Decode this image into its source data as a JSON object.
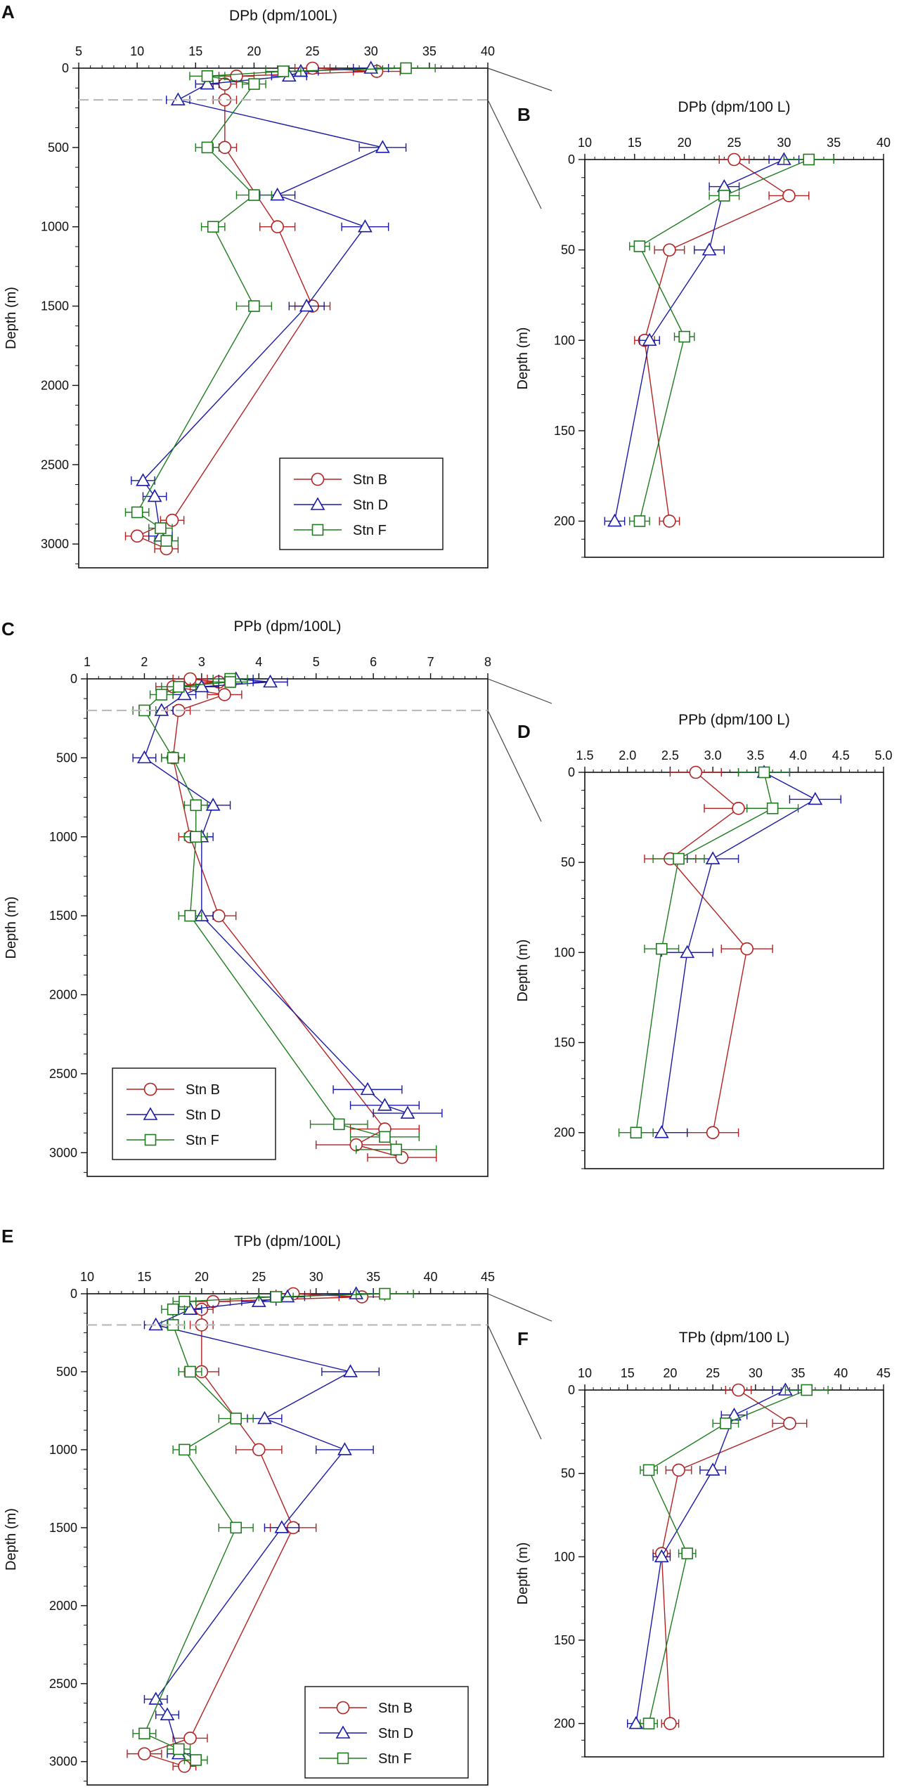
{
  "figure": {
    "panel_letters": [
      "A",
      "B",
      "C",
      "D",
      "E",
      "F"
    ]
  },
  "colors": {
    "B": "#b22222",
    "D": "#1a1aa6",
    "F": "#1e7b1e",
    "axis": "#111111",
    "divider": "#bbbbbb"
  },
  "chart_data": [
    {
      "id": "A",
      "type": "line",
      "title": "DPb (dpm/100L)",
      "xlabel": "",
      "ylabel": "Depth (m)",
      "xlim": [
        5,
        40
      ],
      "xticks": [
        5,
        10,
        15,
        20,
        25,
        30,
        35,
        40
      ],
      "ylim": [
        0,
        3150
      ],
      "yticks": [
        0,
        500,
        1000,
        1500,
        2000,
        2500,
        3000
      ],
      "legend_position": "bottom-right",
      "series": [
        {
          "name": "Stn B",
          "marker": "circle",
          "depth": [
            0,
            20,
            50,
            100,
            200,
            500,
            1000,
            1500,
            2850,
            2950,
            3030
          ],
          "values": [
            25,
            30.5,
            18.5,
            17.5,
            17.5,
            17.5,
            22,
            25,
            13,
            10,
            12.5
          ],
          "errors": [
            1.5,
            2,
            1.5,
            1,
            1,
            1,
            1.5,
            1.5,
            1,
            1,
            1
          ]
        },
        {
          "name": "Stn D",
          "marker": "triangle",
          "depth": [
            0,
            20,
            50,
            100,
            200,
            500,
            800,
            1000,
            1500,
            2600,
            2700,
            2950
          ],
          "values": [
            30,
            24,
            23,
            16,
            13.5,
            31,
            22,
            29.5,
            24.5,
            10.5,
            11.5,
            12
          ],
          "errors": [
            1.5,
            1.5,
            1.5,
            1,
            1,
            2,
            1.5,
            2,
            1.5,
            1,
            1,
            1
          ]
        },
        {
          "name": "Stn F",
          "marker": "square",
          "depth": [
            0,
            20,
            50,
            100,
            500,
            800,
            1000,
            1500,
            2800,
            2900,
            2980
          ],
          "values": [
            33,
            22.5,
            16,
            20,
            16,
            20,
            16.5,
            20,
            10,
            12,
            12.5
          ],
          "errors": [
            2.5,
            1.5,
            1.5,
            1,
            1,
            1.5,
            1,
            1.5,
            1,
            1,
            1
          ]
        }
      ]
    },
    {
      "id": "B",
      "type": "line",
      "title": "DPb (dpm/100 L)",
      "xlabel": "",
      "ylabel": "Depth (m)",
      "xlim": [
        10,
        40
      ],
      "xticks": [
        10,
        15,
        20,
        25,
        30,
        35,
        40
      ],
      "ylim": [
        0,
        220
      ],
      "yticks": [
        0,
        50,
        100,
        150,
        200
      ],
      "series": [
        {
          "name": "Stn B",
          "marker": "circle",
          "depth": [
            0,
            20,
            50,
            100,
            200
          ],
          "values": [
            25,
            30.5,
            18.5,
            16,
            18.5
          ],
          "errors": [
            1.5,
            2,
            1.5,
            1,
            1
          ]
        },
        {
          "name": "Stn D",
          "marker": "triangle",
          "depth": [
            0,
            15,
            50,
            100,
            200
          ],
          "values": [
            30,
            24,
            22.5,
            16.5,
            13
          ],
          "errors": [
            1.5,
            1.5,
            1.5,
            1,
            1
          ]
        },
        {
          "name": "Stn F",
          "marker": "square",
          "depth": [
            0,
            20,
            48,
            98,
            200
          ],
          "values": [
            32.5,
            24,
            15.5,
            20,
            15.5
          ],
          "errors": [
            2.5,
            1.5,
            1,
            1,
            1
          ]
        }
      ]
    },
    {
      "id": "C",
      "type": "line",
      "title": "PPb (dpm/100L)",
      "xlabel": "",
      "ylabel": "Depth (m)",
      "xlim": [
        1,
        8
      ],
      "xticks": [
        1,
        2,
        3,
        4,
        5,
        6,
        7,
        8
      ],
      "ylim": [
        0,
        3150
      ],
      "yticks": [
        0,
        500,
        1000,
        1500,
        2000,
        2500,
        3000
      ],
      "legend_position": "bottom-left",
      "series": [
        {
          "name": "Stn B",
          "marker": "circle",
          "depth": [
            0,
            20,
            50,
            100,
            200,
            500,
            1000,
            1500,
            2850,
            2950,
            3030
          ],
          "values": [
            2.8,
            3.3,
            2.5,
            3.4,
            2.6,
            2.5,
            2.8,
            3.3,
            6.2,
            5.7,
            6.5
          ],
          "errors": [
            0.3,
            0.3,
            0.3,
            0.3,
            0.2,
            0.2,
            0.2,
            0.3,
            0.6,
            0.7,
            0.6
          ]
        },
        {
          "name": "Stn D",
          "marker": "triangle",
          "depth": [
            0,
            20,
            50,
            100,
            200,
            500,
            800,
            1000,
            1500,
            2600,
            2700,
            2750
          ],
          "values": [
            3.6,
            4.2,
            3.0,
            2.7,
            2.3,
            2.0,
            3.2,
            3.0,
            3.0,
            5.9,
            6.2,
            6.6
          ],
          "errors": [
            0.3,
            0.3,
            0.3,
            0.2,
            0.2,
            0.2,
            0.3,
            0.2,
            0.2,
            0.6,
            0.6,
            0.6
          ]
        },
        {
          "name": "Stn F",
          "marker": "square",
          "depth": [
            0,
            20,
            50,
            100,
            200,
            500,
            800,
            1000,
            1500,
            2820,
            2900,
            2980
          ],
          "values": [
            3.5,
            3.5,
            2.6,
            2.3,
            2.0,
            2.5,
            2.9,
            2.9,
            2.8,
            5.4,
            6.2,
            6.4
          ],
          "errors": [
            0.3,
            0.3,
            0.3,
            0.2,
            0.2,
            0.2,
            0.2,
            0.2,
            0.2,
            0.5,
            0.6,
            0.7
          ]
        }
      ]
    },
    {
      "id": "D",
      "type": "line",
      "title": "PPb (dpm/100 L)",
      "xlabel": "",
      "ylabel": "Depth (m)",
      "xlim": [
        1.5,
        5.0
      ],
      "xticks": [
        "1.5",
        "2.0",
        "2.5",
        "3.0",
        "3.5",
        "4.0",
        "4.5",
        "5.0"
      ],
      "ylim": [
        0,
        220
      ],
      "yticks": [
        0,
        50,
        100,
        150,
        200
      ],
      "series": [
        {
          "name": "Stn B",
          "marker": "circle",
          "depth": [
            0,
            20,
            48,
            98,
            200
          ],
          "values": [
            2.8,
            3.3,
            2.5,
            3.4,
            3.0
          ],
          "errors": [
            0.3,
            0.4,
            0.3,
            0.3,
            0.3
          ]
        },
        {
          "name": "Stn D",
          "marker": "triangle",
          "depth": [
            0,
            15,
            48,
            100,
            200
          ],
          "values": [
            3.6,
            4.2,
            3.0,
            2.7,
            2.4
          ],
          "errors": [
            0.3,
            0.3,
            0.3,
            0.3,
            0.3
          ]
        },
        {
          "name": "Stn F",
          "marker": "square",
          "depth": [
            0,
            20,
            48,
            98,
            200
          ],
          "values": [
            3.6,
            3.7,
            2.6,
            2.4,
            2.1
          ],
          "errors": [
            0.3,
            0.3,
            0.3,
            0.2,
            0.2
          ]
        }
      ]
    },
    {
      "id": "E",
      "type": "line",
      "title": "TPb (dpm/100L)",
      "xlabel": "",
      "ylabel": "Depth (m)",
      "xlim": [
        10,
        45
      ],
      "xticks": [
        10,
        15,
        20,
        25,
        30,
        35,
        40,
        45
      ],
      "ylim": [
        0,
        3150
      ],
      "yticks": [
        0,
        500,
        1000,
        1500,
        2000,
        2500,
        3000
      ],
      "legend_position": "bottom-right",
      "series": [
        {
          "name": "Stn B",
          "marker": "circle",
          "depth": [
            0,
            20,
            50,
            100,
            200,
            500,
            1000,
            1500,
            2850,
            2950,
            3030
          ],
          "values": [
            28,
            34,
            21,
            20,
            20,
            20,
            25,
            28,
            19,
            15,
            18.5
          ],
          "errors": [
            1.5,
            2,
            1.5,
            1,
            1,
            1.5,
            2,
            2,
            1.5,
            1.5,
            1
          ]
        },
        {
          "name": "Stn D",
          "marker": "triangle",
          "depth": [
            0,
            20,
            50,
            100,
            200,
            500,
            800,
            1000,
            1500,
            2600,
            2700,
            2950
          ],
          "values": [
            33.5,
            27.5,
            25,
            19,
            16,
            33,
            25.5,
            32.5,
            27,
            16,
            17,
            18
          ],
          "errors": [
            1.5,
            1.5,
            1.5,
            1,
            1,
            2.5,
            1.5,
            2.5,
            1.5,
            1,
            1,
            1
          ]
        },
        {
          "name": "Stn F",
          "marker": "square",
          "depth": [
            0,
            20,
            50,
            100,
            200,
            500,
            800,
            1000,
            1500,
            2820,
            2920,
            2990
          ],
          "values": [
            36,
            26.5,
            18.5,
            17.5,
            17.5,
            19,
            23,
            18.5,
            23,
            15,
            18,
            19.5
          ],
          "errors": [
            2.5,
            1.5,
            1,
            1,
            1,
            1,
            1.5,
            1,
            1.5,
            1,
            1,
            1
          ]
        }
      ]
    },
    {
      "id": "F",
      "type": "line",
      "title": "TPb (dpm/100 L)",
      "xlabel": "",
      "ylabel": "Depth (m)",
      "xlim": [
        10,
        45
      ],
      "xticks": [
        10,
        15,
        20,
        25,
        30,
        35,
        40,
        45
      ],
      "ylim": [
        0,
        220
      ],
      "yticks": [
        0,
        50,
        100,
        150,
        200
      ],
      "series": [
        {
          "name": "Stn B",
          "marker": "circle",
          "depth": [
            0,
            20,
            48,
            98,
            200
          ],
          "values": [
            28,
            34,
            21,
            19,
            20
          ],
          "errors": [
            1.5,
            2,
            1.5,
            1,
            1
          ]
        },
        {
          "name": "Stn D",
          "marker": "triangle",
          "depth": [
            0,
            15,
            48,
            100,
            200
          ],
          "values": [
            33.5,
            27.5,
            25,
            19,
            16
          ],
          "errors": [
            1.5,
            1.5,
            1.5,
            1,
            1
          ]
        },
        {
          "name": "Stn F",
          "marker": "square",
          "depth": [
            0,
            20,
            48,
            98,
            200
          ],
          "values": [
            36,
            26.5,
            17.5,
            22,
            17.5
          ],
          "errors": [
            2.5,
            1.5,
            1,
            1,
            1
          ]
        }
      ]
    }
  ]
}
